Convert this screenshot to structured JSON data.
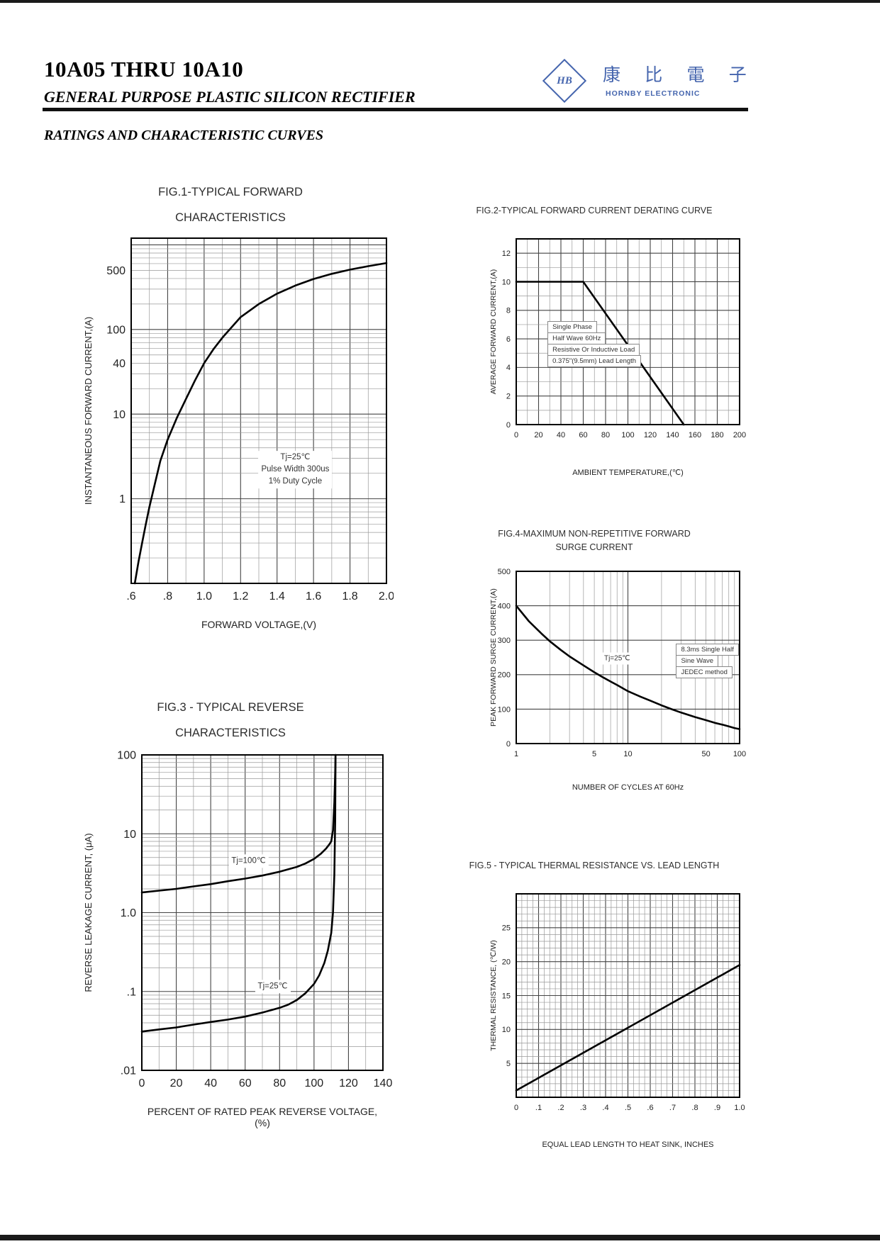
{
  "page": {
    "title": "10A05 THRU 10A10",
    "subtitle": "GENERAL PURPOSE PLASTIC SILICON RECTIFIER",
    "section_heading": "RATINGS AND CHARACTERISTIC CURVES",
    "logo": {
      "monogram": "HB",
      "brand_cjk": "康 比 電 子",
      "brand_en": "HORNBY ELECTRONIC",
      "color": "#4565ae"
    }
  },
  "chart_data": [
    {
      "id": "fig1",
      "type": "line",
      "title_lines": [
        "FIG.1-TYPICAL FORWARD",
        "CHARACTERISTICS"
      ],
      "xlabel": "FORWARD VOLTAGE,(V)",
      "ylabel": "INSTANTANEOUS FORWARD CURRENT,(A)",
      "x_axis": {
        "scale": "linear",
        "min": 0.6,
        "max": 2.0,
        "minor": 0.1,
        "major": 0.2,
        "ticks": [
          {
            "v": 0.6,
            "label": ".6"
          },
          {
            "v": 0.8,
            "label": ".8"
          },
          {
            "v": 1.0,
            "label": "1.0"
          },
          {
            "v": 1.2,
            "label": "1.2"
          },
          {
            "v": 1.4,
            "label": "1.4"
          },
          {
            "v": 1.6,
            "label": "1.6"
          },
          {
            "v": 1.8,
            "label": "1.8"
          },
          {
            "v": 2.0,
            "label": "2.0"
          }
        ]
      },
      "y_axis": {
        "scale": "log",
        "min": 0.1,
        "max": 1200,
        "ticks": [
          {
            "v": 500,
            "label": "500"
          },
          {
            "v": 100,
            "label": "100"
          },
          {
            "v": 40,
            "label": "40"
          },
          {
            "v": 10,
            "label": "10"
          },
          {
            "v": 1,
            "label": "1"
          }
        ]
      },
      "series": [
        {
          "name": "forward-current",
          "points": [
            [
              0.62,
              0.1
            ],
            [
              0.64,
              0.18
            ],
            [
              0.66,
              0.3
            ],
            [
              0.68,
              0.5
            ],
            [
              0.7,
              0.8
            ],
            [
              0.73,
              1.5
            ],
            [
              0.76,
              2.8
            ],
            [
              0.8,
              5
            ],
            [
              0.85,
              9
            ],
            [
              0.9,
              15
            ],
            [
              0.95,
              25
            ],
            [
              1.0,
              40
            ],
            [
              1.05,
              58
            ],
            [
              1.1,
              80
            ],
            [
              1.2,
              140
            ],
            [
              1.3,
              200
            ],
            [
              1.4,
              265
            ],
            [
              1.5,
              330
            ],
            [
              1.6,
              395
            ],
            [
              1.7,
              455
            ],
            [
              1.8,
              510
            ],
            [
              1.9,
              560
            ],
            [
              2.0,
              610
            ]
          ]
        }
      ],
      "annotations": [
        {
          "kind": "text",
          "x": 1.5,
          "y": 2.2,
          "lines": [
            "Tj=25℃",
            "Pulse Width 300us",
            "1% Duty Cycle"
          ]
        }
      ],
      "grid": true,
      "legend": "none"
    },
    {
      "id": "fig2",
      "type": "line",
      "title_lines": [
        "FIG.2-TYPICAL FORWARD CURRENT DERATING CURVE"
      ],
      "xlabel": "AMBIENT TEMPERATURE,(℃)",
      "ylabel": "AVERAGE FORWARD CURRENT,(A)",
      "x_axis": {
        "scale": "linear",
        "min": 0,
        "max": 200,
        "minor": 10,
        "major": 20,
        "ticks": [
          {
            "v": 0,
            "label": "0"
          },
          {
            "v": 20,
            "label": "20"
          },
          {
            "v": 40,
            "label": "40"
          },
          {
            "v": 60,
            "label": "60"
          },
          {
            "v": 80,
            "label": "80"
          },
          {
            "v": 100,
            "label": "100"
          },
          {
            "v": 120,
            "label": "120"
          },
          {
            "v": 140,
            "label": "140"
          },
          {
            "v": 160,
            "label": "160"
          },
          {
            "v": 180,
            "label": "180"
          },
          {
            "v": 200,
            "label": "200"
          }
        ]
      },
      "y_axis": {
        "scale": "linear",
        "min": 0,
        "max": 13,
        "minor": 1,
        "major": 2,
        "ticks": [
          {
            "v": 0,
            "label": "0"
          },
          {
            "v": 2,
            "label": "2"
          },
          {
            "v": 4,
            "label": "4"
          },
          {
            "v": 6,
            "label": "6"
          },
          {
            "v": 8,
            "label": "8"
          },
          {
            "v": 10,
            "label": "10"
          },
          {
            "v": 12,
            "label": "12"
          }
        ]
      },
      "series": [
        {
          "name": "derating",
          "points": [
            [
              0,
              10
            ],
            [
              60,
              10
            ],
            [
              150,
              0
            ]
          ]
        }
      ],
      "annotations": [
        {
          "kind": "linebox",
          "x": 28,
          "y": 7.2,
          "lines": [
            "Single Phase",
            "Half Wave 60Hz",
            "Resistive Or Inductive Load",
            "0.375\"(9.5mm) Lead Length"
          ]
        }
      ],
      "grid": true,
      "legend": "none"
    },
    {
      "id": "fig3",
      "type": "line",
      "title_lines": [
        "FIG.3 - TYPICAL REVERSE",
        "CHARACTERISTICS"
      ],
      "xlabel": "PERCENT OF RATED PEAK REVERSE VOLTAGE,(%)",
      "ylabel": "REVERSE LEAKAGE CURRENT, (μA)",
      "x_axis": {
        "scale": "linear",
        "min": 0,
        "max": 140,
        "minor": 10,
        "major": 20,
        "ticks": [
          {
            "v": 0,
            "label": "0"
          },
          {
            "v": 20,
            "label": "20"
          },
          {
            "v": 40,
            "label": "40"
          },
          {
            "v": 60,
            "label": "60"
          },
          {
            "v": 80,
            "label": "80"
          },
          {
            "v": 100,
            "label": "100"
          },
          {
            "v": 120,
            "label": "120"
          },
          {
            "v": 140,
            "label": "140"
          }
        ]
      },
      "y_axis": {
        "scale": "log",
        "min": 0.01,
        "max": 100,
        "ticks": [
          {
            "v": 100,
            "label": "100"
          },
          {
            "v": 10,
            "label": "10"
          },
          {
            "v": 1,
            "label": "1.0"
          },
          {
            "v": 0.1,
            "label": ".1"
          },
          {
            "v": 0.01,
            "label": ".01"
          }
        ]
      },
      "series": [
        {
          "name": "leakage-tj100",
          "points": [
            [
              0,
              1.8
            ],
            [
              10,
              1.9
            ],
            [
              20,
              2.0
            ],
            [
              30,
              2.15
            ],
            [
              40,
              2.3
            ],
            [
              50,
              2.5
            ],
            [
              60,
              2.7
            ],
            [
              70,
              2.95
            ],
            [
              80,
              3.3
            ],
            [
              90,
              3.8
            ],
            [
              95,
              4.2
            ],
            [
              100,
              4.8
            ],
            [
              104,
              5.6
            ],
            [
              107,
              6.5
            ],
            [
              109,
              7.4
            ],
            [
              110,
              8
            ],
            [
              111,
              11
            ],
            [
              111.8,
              25
            ],
            [
              112.3,
              60
            ],
            [
              112.5,
              100
            ]
          ]
        },
        {
          "name": "leakage-tj25",
          "points": [
            [
              0,
              0.031
            ],
            [
              10,
              0.033
            ],
            [
              20,
              0.035
            ],
            [
              30,
              0.038
            ],
            [
              40,
              0.041
            ],
            [
              50,
              0.044
            ],
            [
              60,
              0.048
            ],
            [
              70,
              0.054
            ],
            [
              80,
              0.062
            ],
            [
              85,
              0.068
            ],
            [
              90,
              0.078
            ],
            [
              95,
              0.095
            ],
            [
              100,
              0.125
            ],
            [
              103,
              0.16
            ],
            [
              106,
              0.23
            ],
            [
              108,
              0.33
            ],
            [
              110,
              0.55
            ],
            [
              111,
              1.0
            ],
            [
              111.8,
              3
            ],
            [
              112.3,
              15
            ],
            [
              112.5,
              100
            ]
          ]
        }
      ],
      "annotations": [
        {
          "kind": "text",
          "x": 62,
          "y": 4.5,
          "lines": [
            "Tj=100℃"
          ]
        },
        {
          "kind": "text",
          "x": 76,
          "y": 0.115,
          "lines": [
            "Tj=25℃"
          ]
        }
      ],
      "grid": true,
      "legend": "none"
    },
    {
      "id": "fig4",
      "type": "line",
      "title_lines": [
        "FIG.4-MAXIMUM NON-REPETITIVE FORWARD",
        "SURGE CURRENT"
      ],
      "xlabel": "NUMBER OF CYCLES AT 60Hz",
      "ylabel": "PEAK FORWARD SURGE CURRENT,(A)",
      "x_axis": {
        "scale": "log",
        "min": 1,
        "max": 100,
        "ticks": [
          {
            "v": 1,
            "label": "1"
          },
          {
            "v": 5,
            "label": "5"
          },
          {
            "v": 10,
            "label": "10"
          },
          {
            "v": 50,
            "label": "50"
          },
          {
            "v": 100,
            "label": "100"
          }
        ]
      },
      "y_axis": {
        "scale": "linear",
        "min": 0,
        "max": 500,
        "minor": 100,
        "major": 100,
        "ticks": [
          {
            "v": 0,
            "label": "0"
          },
          {
            "v": 100,
            "label": "100"
          },
          {
            "v": 200,
            "label": "200"
          },
          {
            "v": 300,
            "label": "300"
          },
          {
            "v": 400,
            "label": "400"
          },
          {
            "v": 500,
            "label": "500"
          }
        ]
      },
      "series": [
        {
          "name": "surge",
          "points": [
            [
              1,
              400
            ],
            [
              1.3,
              355
            ],
            [
              1.7,
              318
            ],
            [
              2,
              297
            ],
            [
              2.5,
              272
            ],
            [
              3,
              253
            ],
            [
              4,
              227
            ],
            [
              5,
              207
            ],
            [
              6,
              192
            ],
            [
              7,
              180
            ],
            [
              8,
              170
            ],
            [
              10,
              152
            ],
            [
              13,
              136
            ],
            [
              16,
              124
            ],
            [
              20,
              111
            ],
            [
              25,
              99
            ],
            [
              30,
              90
            ],
            [
              40,
              77
            ],
            [
              50,
              68
            ],
            [
              60,
              60
            ],
            [
              70,
              55
            ],
            [
              80,
              50
            ],
            [
              90,
              45
            ],
            [
              100,
              42
            ]
          ]
        }
      ],
      "annotations": [
        {
          "kind": "text",
          "x": 8,
          "y": 245,
          "lines": [
            "Tj=25℃"
          ]
        },
        {
          "kind": "linebox",
          "x": 27,
          "y": 288,
          "lines": [
            "8.3ms Single Half",
            "Sine Wave",
            "JEDEC method"
          ]
        }
      ],
      "grid": true,
      "legend": "none"
    },
    {
      "id": "fig5",
      "type": "line",
      "title_lines": [
        "FIG.5 - TYPICAL THERMAL RESISTANCE VS. LEAD LENGTH"
      ],
      "xlabel": "EQUAL LEAD LENGTH TO HEAT SINK, INCHES",
      "ylabel": "THERMAL RESISTANCE, (℃/W)",
      "x_axis": {
        "scale": "linear",
        "min": 0,
        "max": 1.0,
        "minor": 0.025,
        "major": 0.1,
        "ticks": [
          {
            "v": 0,
            "label": "0"
          },
          {
            "v": 0.1,
            "label": ".1"
          },
          {
            "v": 0.2,
            "label": ".2"
          },
          {
            "v": 0.3,
            "label": ".3"
          },
          {
            "v": 0.4,
            "label": ".4"
          },
          {
            "v": 0.5,
            "label": ".5"
          },
          {
            "v": 0.6,
            "label": ".6"
          },
          {
            "v": 0.7,
            "label": ".7"
          },
          {
            "v": 0.8,
            "label": ".8"
          },
          {
            "v": 0.9,
            "label": ".9"
          },
          {
            "v": 1.0,
            "label": "1.0"
          }
        ]
      },
      "y_axis": {
        "scale": "linear",
        "min": 0,
        "max": 30,
        "minor": 1,
        "major": 5,
        "ticks": [
          {
            "v": 5,
            "label": "5"
          },
          {
            "v": 10,
            "label": "10"
          },
          {
            "v": 15,
            "label": "15"
          },
          {
            "v": 20,
            "label": "20"
          },
          {
            "v": 25,
            "label": "25"
          }
        ]
      },
      "series": [
        {
          "name": "thermal-resistance",
          "points": [
            [
              0,
              1
            ],
            [
              1.0,
              19.5
            ]
          ]
        }
      ],
      "annotations": [],
      "grid": true,
      "legend": "none"
    }
  ]
}
